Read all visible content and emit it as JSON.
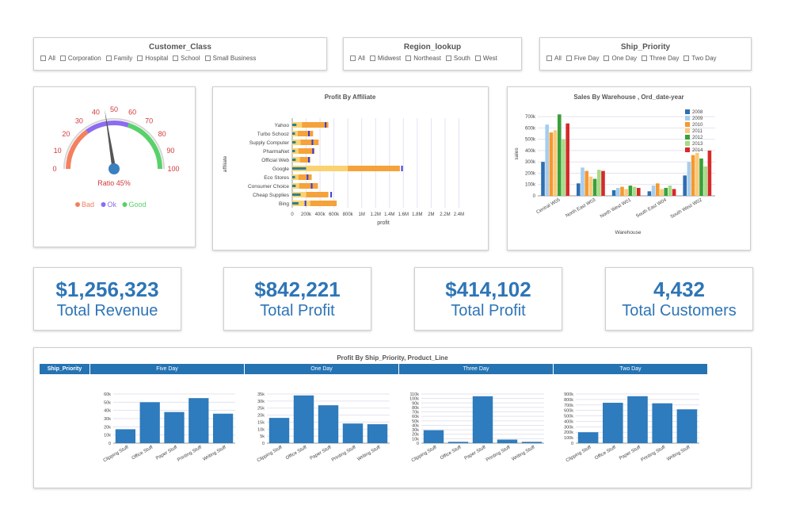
{
  "filters": {
    "customer_class": {
      "title": "Customer_Class",
      "options": [
        "All",
        "Corporation",
        "Family",
        "Hospital",
        "School",
        "Small Business"
      ]
    },
    "region": {
      "title": "Region_lookup",
      "options": [
        "All",
        "Midwest",
        "Northeast",
        "South",
        "West"
      ]
    },
    "ship_priority": {
      "title": "Ship_Priority",
      "options": [
        "All",
        "Five Day",
        "One Day",
        "Three Day",
        "Two Day"
      ]
    }
  },
  "gauge": {
    "ticks": [
      "0",
      "10",
      "20",
      "30",
      "40",
      "50",
      "60",
      "70",
      "80",
      "90",
      "100"
    ],
    "value": 45,
    "ratio_label": "Ratio 45%",
    "legend": [
      {
        "label": "Bad",
        "color": "#f4805f"
      },
      {
        "label": "Ok",
        "color": "#8c6cf0"
      },
      {
        "label": "Good",
        "color": "#59d16a"
      }
    ]
  },
  "kpis": [
    {
      "value": "$1,256,323",
      "label": "Total Revenue"
    },
    {
      "value": "$842,221",
      "label": "Total Profit"
    },
    {
      "value": "$414,102",
      "label": "Total Profit"
    },
    {
      "value": "4,432",
      "label": "Total Customers"
    }
  ],
  "chart_data": [
    {
      "type": "bar",
      "title": "Profit By Affiliate",
      "orientation": "horizontal",
      "ylabel": "affiliate",
      "xlabel": "profit",
      "categories": [
        "Yahoo",
        "Turbo Schooz",
        "Supply Computer",
        "PharmaNet",
        "Official Web",
        "Google",
        "Eco Stores",
        "Consumer Choice",
        "Cheap Supplies",
        "Bing"
      ],
      "x_tick_labels": [
        "0",
        "200k",
        "400k",
        "600k",
        "800k",
        "1M",
        "1.2M",
        "1.4M",
        "1.6M",
        "1.8M",
        "2M",
        "2.2M",
        "2.4M"
      ],
      "xlim": [
        0,
        2600000
      ],
      "bands": [
        {
          "role": "segment-1",
          "color": "#2e7f8f",
          "values": [
            60000,
            40000,
            50000,
            40000,
            50000,
            200000,
            40000,
            50000,
            120000,
            90000
          ]
        },
        {
          "role": "segment-2",
          "color": "#fbd271",
          "values": [
            140000,
            80000,
            120000,
            90000,
            110000,
            800000,
            90000,
            100000,
            200000,
            260000
          ]
        },
        {
          "role": "segment-3",
          "color": "#f5a23a",
          "values": [
            520000,
            300000,
            380000,
            320000,
            260000,
            1550000,
            280000,
            370000,
            520000,
            640000
          ]
        }
      ],
      "markers": [
        480000,
        240000,
        290000,
        300000,
        240000,
        1580000,
        220000,
        280000,
        560000,
        190000
      ]
    },
    {
      "type": "bar",
      "title": "Sales By Warehouse , Ord_date-year",
      "ylabel": "sales",
      "xlabel": "Warehouse",
      "categories": [
        "Central W05",
        "North East W03",
        "North West W01",
        "South East W04",
        "South West W02"
      ],
      "y_tick_labels": [
        "0",
        "100k",
        "200k",
        "300k",
        "400k",
        "500k",
        "600k",
        "700k"
      ],
      "ylim": [
        0,
        750000
      ],
      "series": [
        {
          "name": "2008",
          "color": "#2e6fb0",
          "values": [
            300000,
            110000,
            50000,
            40000,
            180000
          ]
        },
        {
          "name": "2009",
          "color": "#a6cdf0",
          "values": [
            630000,
            250000,
            70000,
            90000,
            300000
          ]
        },
        {
          "name": "2010",
          "color": "#f5992f",
          "values": [
            560000,
            220000,
            80000,
            110000,
            360000
          ]
        },
        {
          "name": "2011",
          "color": "#fbc97b",
          "values": [
            580000,
            170000,
            60000,
            60000,
            380000
          ]
        },
        {
          "name": "2012",
          "color": "#3aa03a",
          "values": [
            720000,
            150000,
            90000,
            70000,
            330000
          ]
        },
        {
          "name": "2013",
          "color": "#a6dc86",
          "values": [
            500000,
            230000,
            80000,
            90000,
            260000
          ]
        },
        {
          "name": "2014",
          "color": "#d62a2a",
          "values": [
            640000,
            220000,
            70000,
            60000,
            400000
          ]
        }
      ]
    },
    {
      "type": "bar",
      "title": "Profit By Ship_Priority, Product_Line",
      "header_label": "Ship_Priority",
      "categories": [
        "Clipping Stuff",
        "Office Stuff",
        "Paper Stuff",
        "Printing Stuff",
        "Writing Stuff"
      ],
      "panels": [
        {
          "name": "Five Day",
          "y_tick_labels": [
            "0",
            "10k",
            "20k",
            "30k",
            "40k",
            "50k",
            "60k"
          ],
          "ylim": [
            0,
            60000
          ],
          "values": [
            17000,
            50000,
            38000,
            55000,
            36000
          ]
        },
        {
          "name": "One Day",
          "y_tick_labels": [
            "0",
            "5k",
            "10k",
            "15k",
            "20k",
            "25k",
            "30k",
            "35k"
          ],
          "ylim": [
            0,
            35000
          ],
          "values": [
            18000,
            34000,
            27000,
            14000,
            13500
          ]
        },
        {
          "name": "Three Day",
          "y_tick_labels": [
            "0",
            "10k",
            "20k",
            "30k",
            "40k",
            "50k",
            "60k",
            "70k",
            "80k",
            "90k",
            "100k",
            "110k"
          ],
          "ylim": [
            0,
            110000
          ],
          "values": [
            29000,
            3000,
            105000,
            8000,
            3000
          ]
        },
        {
          "name": "Two Day",
          "y_tick_labels": [
            "0",
            "100k",
            "200k",
            "300k",
            "400k",
            "500k",
            "600k",
            "700k",
            "800k",
            "900k"
          ],
          "ylim": [
            0,
            900000
          ],
          "values": [
            200000,
            740000,
            860000,
            730000,
            620000
          ]
        }
      ]
    }
  ]
}
